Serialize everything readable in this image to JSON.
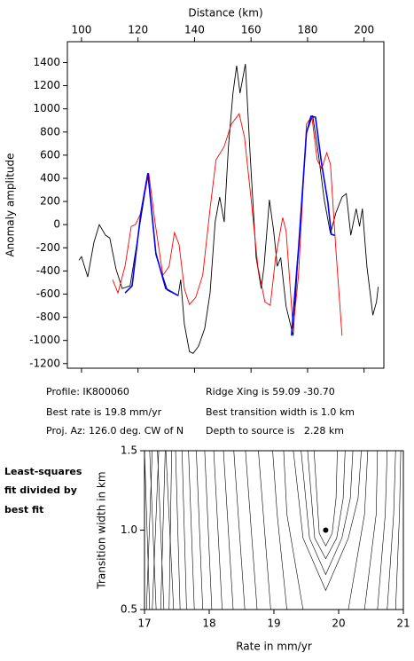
{
  "chart_data": [
    {
      "type": "line",
      "xlabel": "Distance (km)",
      "ylabel": "Anomaly amplitude",
      "xlim": [
        95,
        207
      ],
      "xticks": [
        100,
        120,
        140,
        160,
        180,
        200
      ],
      "ylim": [
        -1240,
        1580
      ],
      "yticks": [
        -1200,
        -1000,
        -800,
        -600,
        -400,
        -200,
        0,
        200,
        400,
        600,
        800,
        1000,
        1200,
        1400
      ],
      "series": [
        {
          "color": "#000000",
          "x": [
            99.1,
            100,
            102.2,
            104.4,
            106.3,
            108.5,
            110,
            112.2,
            114.4,
            117.2,
            123.5,
            126.3,
            130.4,
            134.2,
            135.1,
            136.4,
            138.2,
            139.5,
            141.4,
            143.6,
            145.5,
            147.3,
            148.9,
            150.5,
            152,
            153.6,
            154.9,
            156.1,
            158,
            159.6,
            161.8,
            163.6,
            164.6,
            166.5,
            168,
            169.3,
            170.5,
            172.4,
            174.9,
            176.8,
            179.6,
            181.8,
            183.7,
            185.9,
            188.1,
            190,
            192.2,
            193.7,
            195.3,
            197.2,
            198.4,
            199.4,
            201,
            203.1,
            204.4,
            205
          ],
          "values": [
            -307,
            -276,
            -452,
            -153,
            0,
            -92,
            -115,
            -383,
            -552,
            -529,
            437,
            -261,
            -567,
            -613,
            -475,
            -859,
            -1097,
            -1112,
            -1051,
            -897,
            -590,
            23,
            238,
            23,
            675,
            1135,
            1373,
            1135,
            1388,
            637,
            -284,
            -552,
            -360,
            215,
            -54,
            -360,
            -284,
            -706,
            -959,
            -207,
            790,
            943,
            637,
            215,
            -77,
            100,
            238,
            268,
            -92,
            138,
            -15,
            138,
            -360,
            -782,
            -667,
            -537
          ]
        },
        {
          "color": "#ff0000",
          "x": [
            111,
            112.9,
            115.4,
            117.6,
            119.1,
            121,
            123.8,
            126,
            128.8,
            131,
            132.9,
            134.5,
            136.4,
            138.2,
            140.4,
            142.9,
            145.5,
            147.6,
            150.5,
            153,
            155.8,
            157.7,
            160.2,
            162.4,
            164.9,
            166.8,
            168.7,
            171.2,
            172.4,
            174.9,
            176.8,
            179.6,
            181.5,
            183.4,
            185,
            186.8,
            188.1,
            190,
            192.2
          ],
          "values": [
            -475,
            -590,
            -360,
            -15,
            0,
            100,
            445,
            23,
            -437,
            -360,
            -69,
            -169,
            -552,
            -690,
            -629,
            -437,
            138,
            560,
            675,
            867,
            958,
            752,
            176,
            -360,
            -667,
            -698,
            -284,
            61,
            -54,
            -897,
            -437,
            867,
            936,
            560,
            483,
            621,
            521,
            -207,
            -959
          ]
        },
        {
          "color": "#0000ff",
          "x": [
            115.4,
            117.9,
            121,
            123.5,
            126.3,
            129.8,
            134.2,
            null,
            174.3,
            176.8,
            179.6,
            181.2,
            182.8,
            185,
            187.2,
            188.4,
            189.6
          ],
          "values": [
            -590,
            -529,
            100,
            445,
            -245,
            -552,
            -613,
            null,
            -959,
            -207,
            790,
            936,
            928,
            521,
            192,
            -84,
            -92
          ]
        }
      ]
    },
    {
      "type": "contour",
      "xlabel": "Rate in mm/yr",
      "ylabel": "Transition width in km",
      "xlim": [
        17,
        21
      ],
      "xticks": [
        17,
        18,
        19,
        20,
        21
      ],
      "ylim": [
        0.5,
        1.5
      ],
      "yticks": [
        0.5,
        {
          "value": 1,
          "label": "1.0"
        },
        1.5
      ],
      "point": {
        "x": 19.8,
        "y": 1
      },
      "contours": [
        {
          "x": [
            17.03,
            17.12
          ],
          "y": [
            0.5,
            1.5
          ]
        },
        {
          "x": [
            17.08,
            17.0
          ],
          "y": [
            0.5,
            1.5
          ]
        },
        {
          "x": [
            17.12,
            17.22
          ],
          "y": [
            0.5,
            1.5
          ]
        },
        {
          "x": [
            17.18,
            17.08
          ],
          "y": [
            0.5,
            1.5
          ]
        },
        {
          "x": [
            17.25,
            17.32
          ],
          "y": [
            0.5,
            1.5
          ]
        },
        {
          "x": [
            17.3,
            17.2
          ],
          "y": [
            0.5,
            1.5
          ]
        },
        {
          "x": [
            17.38,
            17.42
          ],
          "y": [
            0.5,
            1.5
          ]
        },
        {
          "x": [
            17.45,
            17.33
          ],
          "y": [
            0.5,
            1.5
          ]
        },
        {
          "x": [
            17.55,
            17.48
          ],
          "y": [
            0.5,
            1.5
          ]
        },
        {
          "x": [
            17.65,
            17.58
          ],
          "y": [
            0.5,
            1.5
          ]
        },
        {
          "x": [
            17.77,
            17.68
          ],
          "y": [
            0.5,
            1.5
          ]
        },
        {
          "x": [
            17.9,
            17.8
          ],
          "y": [
            0.5,
            1.5
          ]
        },
        {
          "x": [
            18.04,
            17.93
          ],
          "y": [
            0.5,
            1.5
          ]
        },
        {
          "x": [
            18.2,
            18.07
          ],
          "y": [
            0.5,
            1.5
          ]
        },
        {
          "x": [
            18.37,
            18.22
          ],
          "y": [
            0.5,
            1.5
          ]
        },
        {
          "x": [
            18.55,
            18.38
          ],
          "y": [
            0.5,
            1.5
          ]
        },
        {
          "x": [
            18.74,
            18.56
          ],
          "y": [
            0.5,
            1.5
          ]
        },
        {
          "x": [
            18.95,
            18.76
          ],
          "y": [
            0.5,
            1.5
          ]
        },
        {
          "x": [
            19.2,
            19.05,
            18.98
          ],
          "y": [
            0.5,
            1.1,
            1.5
          ]
        },
        {
          "x": [
            19.45,
            19.2,
            19.15
          ],
          "y": [
            0.5,
            1.1,
            1.5
          ]
        },
        {
          "x": [
            19.3,
            19.45,
            19.8,
            20.15,
            20.3,
            20.35
          ],
          "y": [
            1.5,
            0.95,
            0.62,
            0.95,
            1.2,
            1.5
          ]
        },
        {
          "x": [
            19.42,
            19.55,
            19.8,
            20.05,
            20.18,
            20.22
          ],
          "y": [
            1.5,
            0.95,
            0.72,
            0.95,
            1.2,
            1.5
          ]
        },
        {
          "x": [
            19.52,
            19.63,
            19.8,
            19.97,
            20.07,
            20.1
          ],
          "y": [
            1.5,
            0.95,
            0.82,
            0.95,
            1.2,
            1.5
          ]
        },
        {
          "x": [
            19.62,
            19.7,
            19.8,
            19.9,
            19.96,
            19.98
          ],
          "y": [
            1.5,
            0.98,
            0.9,
            0.98,
            1.2,
            1.5
          ]
        },
        {
          "x": [
            20.15,
            20.4,
            20.45
          ],
          "y": [
            0.5,
            1.1,
            1.5
          ]
        },
        {
          "x": [
            20.4,
            20.58,
            20.6
          ],
          "y": [
            0.5,
            1.1,
            1.5
          ]
        },
        {
          "x": [
            20.6,
            20.72,
            20.75
          ],
          "y": [
            0.5,
            1.1,
            1.5
          ]
        },
        {
          "x": [
            20.75,
            20.85,
            20.88
          ],
          "y": [
            0.5,
            1.1,
            1.5
          ]
        },
        {
          "x": [
            20.88,
            20.94,
            20.96
          ],
          "y": [
            0.5,
            1.1,
            1.5
          ]
        }
      ]
    }
  ],
  "info": {
    "profile": "Profile: IK800060",
    "rate": "Best rate is 19.8 mm/yr",
    "az": "Proj. Az: 126.0 deg. CW of N",
    "ridge": "Ridge Xing is 59.09 -30.70",
    "width": "Best transition width is 1.0 km",
    "depth": "Depth to source is   2.28 km",
    "note": [
      "Least-squares",
      "fit divided by",
      "best fit"
    ]
  }
}
